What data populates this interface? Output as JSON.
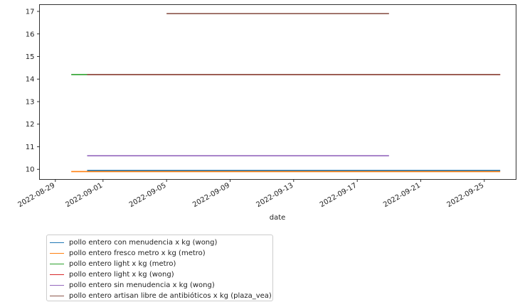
{
  "chart_data": {
    "type": "line",
    "xlabel": "date",
    "ylabel": "",
    "title": "",
    "x_ticks": [
      "2022-08-29",
      "2022-09-01",
      "2022-09-05",
      "2022-09-09",
      "2022-09-13",
      "2022-09-17",
      "2022-09-21",
      "2022-09-25"
    ],
    "y_ticks": [
      10,
      11,
      12,
      13,
      14,
      15,
      16,
      17
    ],
    "xlim": [
      "2022-08-28",
      "2022-09-27"
    ],
    "ylim": [
      9.55,
      17.3
    ],
    "grid": false,
    "legend_position": "below-left",
    "series": [
      {
        "name": "pollo entero con menudencia x kg (wong)",
        "color": "#1f77b4",
        "points": [
          [
            "2022-08-31",
            9.95
          ],
          [
            "2022-09-26",
            9.95
          ]
        ]
      },
      {
        "name": "pollo entero fresco metro x kg (metro)",
        "color": "#ff7f0e",
        "points": [
          [
            "2022-08-30",
            9.9
          ],
          [
            "2022-09-26",
            9.9
          ]
        ]
      },
      {
        "name": "pollo entero light  x kg (metro)",
        "color": "#2ca02c",
        "points": [
          [
            "2022-08-30",
            14.2
          ],
          [
            "2022-08-31",
            14.2
          ]
        ]
      },
      {
        "name": "pollo entero light  x kg (wong)",
        "color": "#d62728",
        "points": [
          [
            "2022-08-31",
            14.2
          ],
          [
            "2022-09-26",
            14.2
          ]
        ]
      },
      {
        "name": "pollo entero sin menudencia x kg (wong)",
        "color": "#9467bd",
        "points": [
          [
            "2022-08-31",
            10.6
          ],
          [
            "2022-09-19",
            10.6
          ]
        ]
      },
      {
        "name": "pollo entero artisan libre de antibióticos x kg (plaza_vea)",
        "color": "#8c564b",
        "points": [
          [
            "2022-09-05",
            16.9
          ],
          [
            "2022-09-19",
            16.9
          ],
          [
            "2022-08-31",
            14.2
          ],
          [
            "2022-09-26",
            14.2
          ]
        ]
      }
    ]
  }
}
